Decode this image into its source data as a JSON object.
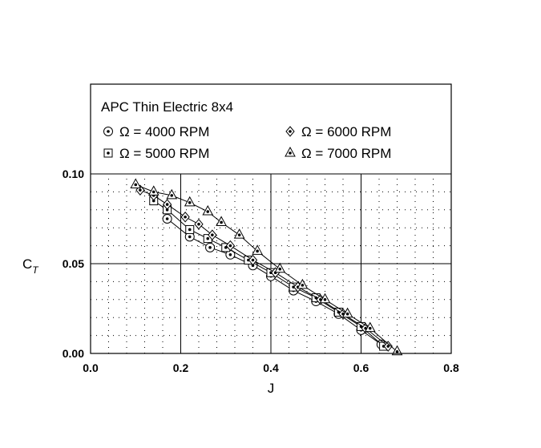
{
  "chart_data": {
    "type": "scatter",
    "title": "APC Thin Electric 8x4",
    "xlabel": "J",
    "ylabel_main": "C",
    "ylabel_sub": "T",
    "xlim": [
      0,
      0.8
    ],
    "ylim": [
      0,
      0.15
    ],
    "xticks": [
      "0.0",
      "0.2",
      "0.4",
      "0.6",
      "0.8"
    ],
    "yticks": [
      "0.00",
      "0.05",
      "0.10"
    ],
    "grid": "major solid, minor dotted",
    "legend_placement": "top, inside",
    "series": [
      {
        "name": "Ω = 4000 RPM",
        "marker": "circle",
        "x": [
          0.17,
          0.22,
          0.265,
          0.31,
          0.36,
          0.4,
          0.45,
          0.5,
          0.55,
          0.6,
          0.645
        ],
        "y": [
          0.075,
          0.065,
          0.059,
          0.055,
          0.049,
          0.043,
          0.035,
          0.029,
          0.022,
          0.013,
          0.005
        ]
      },
      {
        "name": "Ω = 5000 RPM",
        "marker": "square",
        "x": [
          0.14,
          0.17,
          0.22,
          0.26,
          0.3,
          0.35,
          0.4,
          0.45,
          0.5,
          0.55,
          0.6,
          0.65
        ],
        "y": [
          0.085,
          0.08,
          0.069,
          0.064,
          0.059,
          0.052,
          0.045,
          0.037,
          0.031,
          0.023,
          0.015,
          0.004
        ]
      },
      {
        "name": "Ω = 6000 RPM",
        "marker": "diamond",
        "x": [
          0.11,
          0.14,
          0.17,
          0.21,
          0.24,
          0.27,
          0.31,
          0.36,
          0.41,
          0.46,
          0.51,
          0.56,
          0.61,
          0.66
        ],
        "y": [
          0.091,
          0.088,
          0.083,
          0.076,
          0.072,
          0.066,
          0.06,
          0.052,
          0.045,
          0.037,
          0.03,
          0.022,
          0.014,
          0.004
        ]
      },
      {
        "name": "Ω = 7000 RPM",
        "marker": "triangle",
        "x": [
          0.1,
          0.14,
          0.18,
          0.22,
          0.26,
          0.29,
          0.33,
          0.37,
          0.42,
          0.47,
          0.52,
          0.57,
          0.62,
          0.68
        ],
        "y": [
          0.094,
          0.09,
          0.088,
          0.084,
          0.079,
          0.073,
          0.066,
          0.057,
          0.047,
          0.038,
          0.03,
          0.022,
          0.014,
          0.001
        ]
      }
    ]
  }
}
